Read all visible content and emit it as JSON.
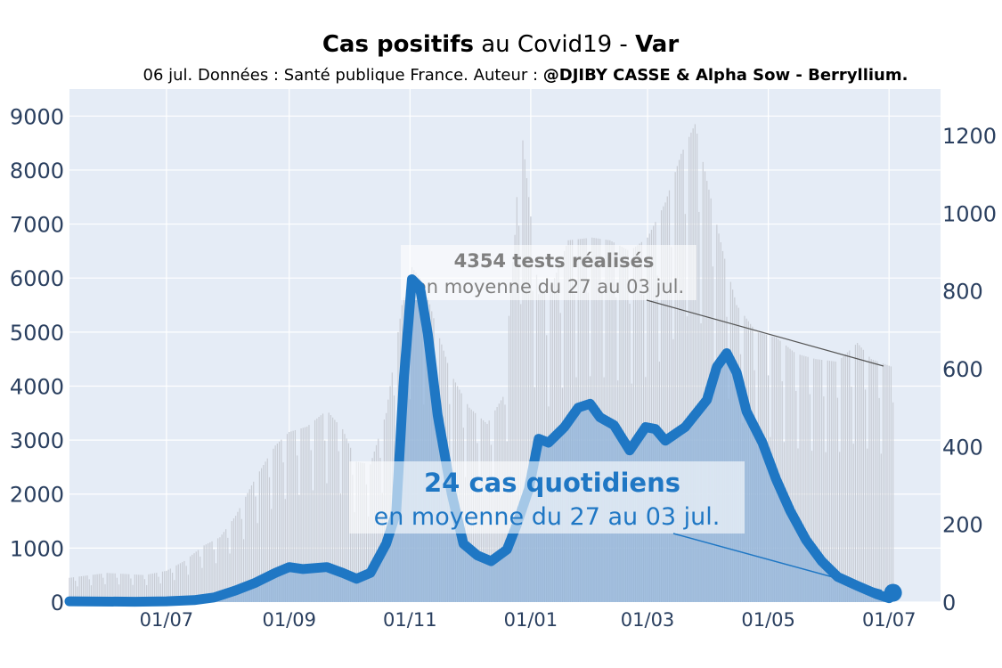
{
  "title": {
    "bold_part": "Cas positifs",
    "middle_part": " au Covid19 - ",
    "region": "Var"
  },
  "subtitle": {
    "plain": "06 jul. Données : Santé publique France. Auteur : ",
    "bold": "@DJIBY CASSE & Alpha Sow - Berryllium."
  },
  "annotations": {
    "tests": {
      "bold": "4354 tests réalisés",
      "line2": "en moyenne du 27 au 03 jul."
    },
    "cases": {
      "bold": "24 cas quotidiens",
      "line2": "en moyenne du 27 au 03 jul."
    }
  },
  "colors": {
    "plot_bg": "#e5ecf6",
    "case_line": "#1f77c4",
    "case_fill": "#8fb3d9",
    "test_bars": "#c8ccd4",
    "tests_annot_text": "#808080",
    "cases_annot_text": "#1f77c4"
  },
  "chart_data": {
    "type": "line",
    "title": "Cas positifs au Covid19 - Var",
    "x_ticks": [
      "01/07",
      "01/09",
      "01/11",
      "01/01",
      "01/03",
      "01/05",
      "01/07"
    ],
    "x_tick_dates": [
      "2020-07-01",
      "2020-09-01",
      "2020-11-01",
      "2021-01-01",
      "2021-03-01",
      "2021-05-01",
      "2021-07-01"
    ],
    "xlim": [
      "2020-05-13",
      "2021-07-27"
    ],
    "y_left": {
      "ticks": [
        0,
        1000,
        2000,
        3000,
        4000,
        5000,
        6000,
        7000,
        8000,
        9000
      ],
      "range": [
        0,
        9500
      ]
    },
    "y_right": {
      "ticks": [
        0,
        200,
        400,
        600,
        800,
        1000,
        1200
      ],
      "range": [
        0,
        1319
      ]
    },
    "grid": true,
    "series": [
      {
        "kind": "bars",
        "axis": "left",
        "points": [
          [
            "2020-05-13",
            450
          ],
          [
            "2020-06-01",
            540
          ],
          [
            "2020-06-20",
            500
          ],
          [
            "2020-07-01",
            580
          ],
          [
            "2020-07-10",
            760
          ],
          [
            "2020-07-20",
            1050
          ],
          [
            "2020-07-28",
            1200
          ],
          [
            "2020-08-05",
            1600
          ],
          [
            "2020-08-15",
            2300
          ],
          [
            "2020-08-25",
            2900
          ],
          [
            "2020-09-01",
            3150
          ],
          [
            "2020-09-10",
            3250
          ],
          [
            "2020-09-20",
            3550
          ],
          [
            "2020-09-28",
            3200
          ],
          [
            "2020-10-05",
            2600
          ],
          [
            "2020-10-12",
            2550
          ],
          [
            "2020-10-20",
            3500
          ],
          [
            "2020-10-28",
            5500
          ],
          [
            "2020-11-02",
            6200
          ],
          [
            "2020-11-08",
            5900
          ],
          [
            "2020-11-15",
            5000
          ],
          [
            "2020-11-22",
            4200
          ],
          [
            "2020-12-01",
            3600
          ],
          [
            "2020-12-10",
            3300
          ],
          [
            "2020-12-18",
            3800
          ],
          [
            "2020-12-24",
            6800
          ],
          [
            "2020-12-27",
            8900
          ],
          [
            "2020-12-31",
            7500
          ],
          [
            "2021-01-05",
            5700
          ],
          [
            "2021-01-12",
            5900
          ],
          [
            "2021-01-20",
            6700
          ],
          [
            "2021-02-01",
            6750
          ],
          [
            "2021-02-10",
            6700
          ],
          [
            "2021-02-20",
            6500
          ],
          [
            "2021-03-01",
            6750
          ],
          [
            "2021-03-10",
            7400
          ],
          [
            "2021-03-18",
            8300
          ],
          [
            "2021-03-25",
            8850
          ],
          [
            "2021-03-31",
            7800
          ],
          [
            "2021-04-08",
            6500
          ],
          [
            "2021-04-15",
            5500
          ],
          [
            "2021-04-25",
            5000
          ],
          [
            "2021-05-05",
            4900
          ],
          [
            "2021-05-15",
            4600
          ],
          [
            "2021-05-25",
            4500
          ],
          [
            "2021-06-05",
            4450
          ],
          [
            "2021-06-15",
            4800
          ],
          [
            "2021-06-22",
            4500
          ],
          [
            "2021-07-03",
            4350
          ]
        ]
      },
      {
        "kind": "area+line",
        "axis": "right",
        "points": [
          [
            "2020-05-13",
            2
          ],
          [
            "2020-06-15",
            1
          ],
          [
            "2020-07-01",
            2
          ],
          [
            "2020-07-15",
            5
          ],
          [
            "2020-07-25",
            12
          ],
          [
            "2020-08-05",
            30
          ],
          [
            "2020-08-15",
            50
          ],
          [
            "2020-08-25",
            75
          ],
          [
            "2020-09-01",
            90
          ],
          [
            "2020-09-08",
            85
          ],
          [
            "2020-09-20",
            90
          ],
          [
            "2020-09-28",
            75
          ],
          [
            "2020-10-05",
            60
          ],
          [
            "2020-10-12",
            75
          ],
          [
            "2020-10-20",
            150
          ],
          [
            "2020-10-25",
            230
          ],
          [
            "2020-10-29",
            580
          ],
          [
            "2020-11-02",
            830
          ],
          [
            "2020-11-06",
            810
          ],
          [
            "2020-11-10",
            690
          ],
          [
            "2020-11-15",
            480
          ],
          [
            "2020-11-22",
            280
          ],
          [
            "2020-11-28",
            150
          ],
          [
            "2020-12-05",
            120
          ],
          [
            "2020-12-12",
            105
          ],
          [
            "2020-12-20",
            135
          ],
          [
            "2020-12-25",
            200
          ],
          [
            "2020-12-31",
            290
          ],
          [
            "2021-01-05",
            420
          ],
          [
            "2021-01-10",
            410
          ],
          [
            "2021-01-18",
            450
          ],
          [
            "2021-01-25",
            500
          ],
          [
            "2021-01-31",
            510
          ],
          [
            "2021-02-05",
            475
          ],
          [
            "2021-02-12",
            455
          ],
          [
            "2021-02-20",
            390
          ],
          [
            "2021-02-28",
            450
          ],
          [
            "2021-03-05",
            445
          ],
          [
            "2021-03-10",
            415
          ],
          [
            "2021-03-20",
            450
          ],
          [
            "2021-03-31",
            520
          ],
          [
            "2021-04-05",
            605
          ],
          [
            "2021-04-10",
            640
          ],
          [
            "2021-04-15",
            590
          ],
          [
            "2021-04-20",
            490
          ],
          [
            "2021-04-28",
            410
          ],
          [
            "2021-05-05",
            315
          ],
          [
            "2021-05-12",
            235
          ],
          [
            "2021-05-20",
            160
          ],
          [
            "2021-05-28",
            105
          ],
          [
            "2021-06-05",
            65
          ],
          [
            "2021-06-15",
            42
          ],
          [
            "2021-06-25",
            20
          ],
          [
            "2021-07-01",
            10
          ],
          [
            "2021-07-03",
            24
          ]
        ]
      }
    ]
  }
}
